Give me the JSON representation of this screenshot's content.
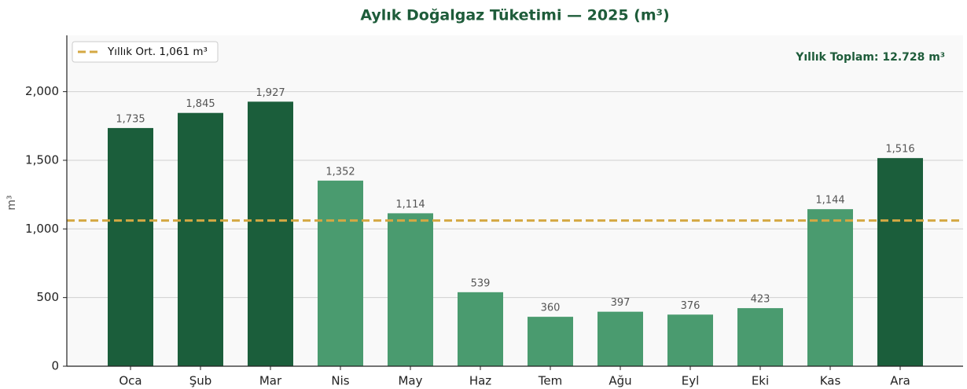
{
  "chart_data": {
    "type": "bar",
    "title": "Aylık Doğalgaz Tüketimi — 2025 (m³)",
    "y_label": "m³",
    "annotation": "Yıllık Toplam: 12.728 m³",
    "categories": [
      "Oca",
      "Şub",
      "Mar",
      "Nis",
      "May",
      "Haz",
      "Tem",
      "Ağu",
      "Eyl",
      "Eki",
      "Kas",
      "Ara"
    ],
    "values": [
      1735,
      1845,
      1927,
      1352,
      1114,
      539,
      360,
      397,
      376,
      423,
      1144,
      1516
    ],
    "value_labels": [
      "1,735",
      "1,845",
      "1,927",
      "1,352",
      "1,114",
      "539",
      "360",
      "397",
      "376",
      "423",
      "1,144",
      "1,516"
    ],
    "colors": [
      "#1b5e3b",
      "#1b5e3b",
      "#1b5e3b",
      "#4a9b6f",
      "#4a9b6f",
      "#4a9b6f",
      "#4a9b6f",
      "#4a9b6f",
      "#4a9b6f",
      "#4a9b6f",
      "#4a9b6f",
      "#1b5e3b"
    ],
    "reference_line": {
      "value": 1061,
      "label": "Yıllık Ort. 1,061 m³",
      "color": "#d4a843"
    },
    "ylim": [
      0,
      2410
    ],
    "yticks": [
      0,
      500,
      {
        "value": 1000,
        "label": "1,000"
      },
      {
        "value": 1500,
        "label": "1,500"
      },
      {
        "value": 2000,
        "label": "2,000"
      }
    ],
    "grid": true,
    "legend": "upper left"
  }
}
